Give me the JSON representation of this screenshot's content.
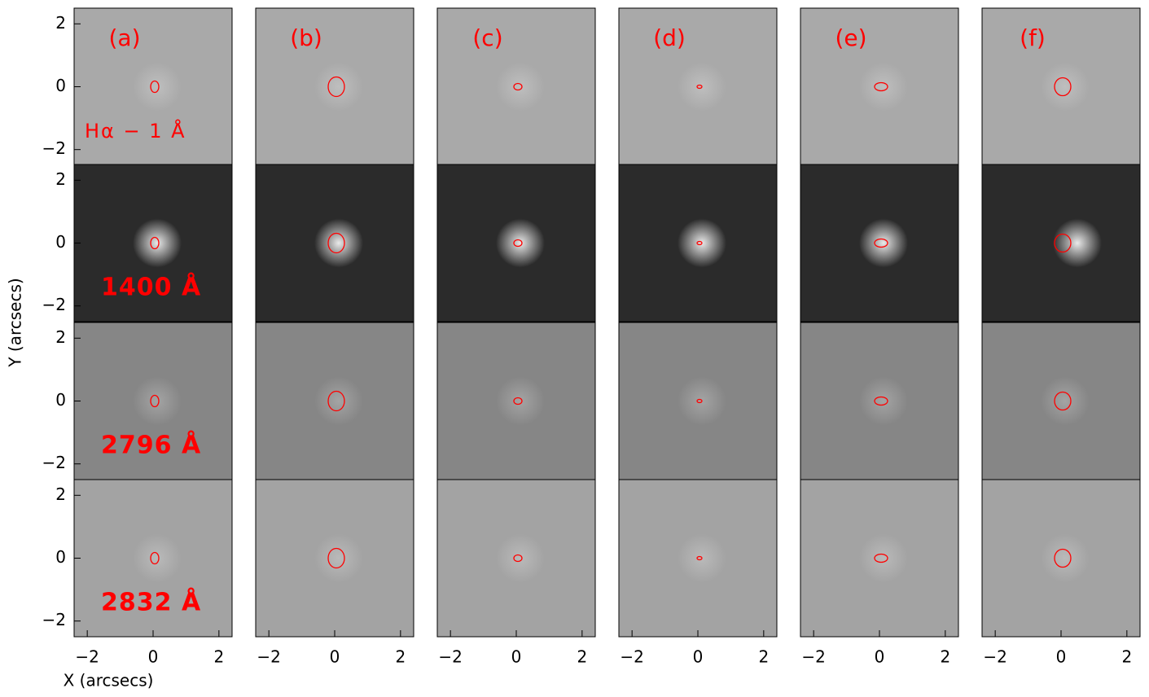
{
  "chart_data": {
    "type": "image-grid",
    "xlabel": "X (arcsecs)",
    "ylabel": "Y (arcsecs)",
    "panels": [
      "(a)",
      "(b)",
      "(c)",
      "(d)",
      "(e)",
      "(f)"
    ],
    "rows": [
      "Hα − 1 Å",
      "1400 Å",
      "2796 Å",
      "2832 Å"
    ],
    "xlim": [
      -2.4,
      2.4
    ],
    "ylim": [
      -2.5,
      2.5
    ],
    "xticks": [
      {
        "value": -2,
        "label": "−2"
      },
      0,
      2
    ],
    "yticks": [
      {
        "value": -2,
        "label": "−2"
      },
      0,
      2
    ],
    "color": "#ff0000"
  }
}
